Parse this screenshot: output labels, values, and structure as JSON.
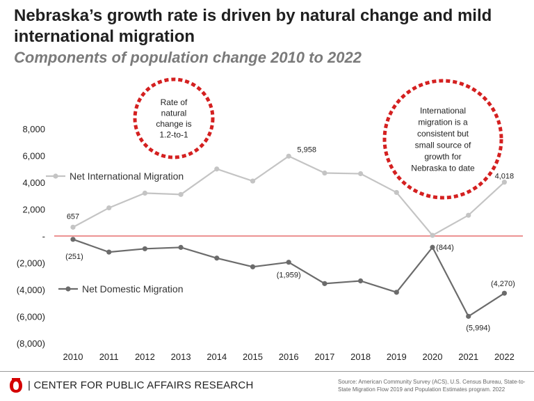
{
  "title": "Nebraska’s growth rate is driven by natural change and mild international migration",
  "subtitle": "Components of population change 2010 to 2022",
  "colors": {
    "international": "#c4c4c4",
    "domestic": "#6b6b6b",
    "zero_line": "#e05050",
    "callout_border": "#d42020"
  },
  "chart_data": {
    "type": "line",
    "categories": [
      "2010",
      "2011",
      "2012",
      "2013",
      "2014",
      "2015",
      "2016",
      "2017",
      "2018",
      "2019",
      "2020",
      "2021",
      "2022"
    ],
    "series": [
      {
        "name": "Net International Migration",
        "values": [
          657,
          2100,
          3200,
          3100,
          5000,
          4100,
          5958,
          4700,
          4650,
          3250,
          50,
          1550,
          4018
        ]
      },
      {
        "name": "Net Domestic Migration",
        "values": [
          -251,
          -1200,
          -950,
          -850,
          -1650,
          -2300,
          -1959,
          -3550,
          -3350,
          -4200,
          -844,
          -5994,
          -4270
        ]
      }
    ],
    "ylim": [
      -8000,
      8000
    ],
    "yticks": [
      8000,
      6000,
      4000,
      2000,
      0,
      -2000,
      -4000,
      -6000,
      -8000
    ],
    "ytick_labels": [
      "8,000",
      "6,000",
      "4,000",
      "2,000",
      "-",
      "(2,000)",
      "(4,000)",
      "(6,000)",
      "(8,000)"
    ],
    "data_labels": [
      {
        "series": 0,
        "index": 0,
        "text": "657"
      },
      {
        "series": 0,
        "index": 6,
        "text": "5,958"
      },
      {
        "series": 0,
        "index": 12,
        "text": "4,018"
      },
      {
        "series": 1,
        "index": 0,
        "text": "(251)"
      },
      {
        "series": 1,
        "index": 6,
        "text": "(1,959)"
      },
      {
        "series": 1,
        "index": 10,
        "text": "(844)"
      },
      {
        "series": 1,
        "index": 11,
        "text": "(5,994)"
      },
      {
        "series": 1,
        "index": 12,
        "text": "(4,270)"
      }
    ],
    "callouts": [
      {
        "lines": [
          "Rate of",
          "natural",
          "change is",
          "1.2-to-1"
        ]
      },
      {
        "lines": [
          "International",
          "migration is a",
          "consistent but",
          "small source of",
          "growth for",
          "Nebraska to date"
        ]
      }
    ]
  },
  "footer": {
    "org": "| CENTER FOR PUBLIC AFFAIRS RESEARCH",
    "source": "Source: American Community Survey (ACS), U.S. Census Bureau, State-to-State Migration Flow 2019 and Population Estimates program. 2022"
  }
}
